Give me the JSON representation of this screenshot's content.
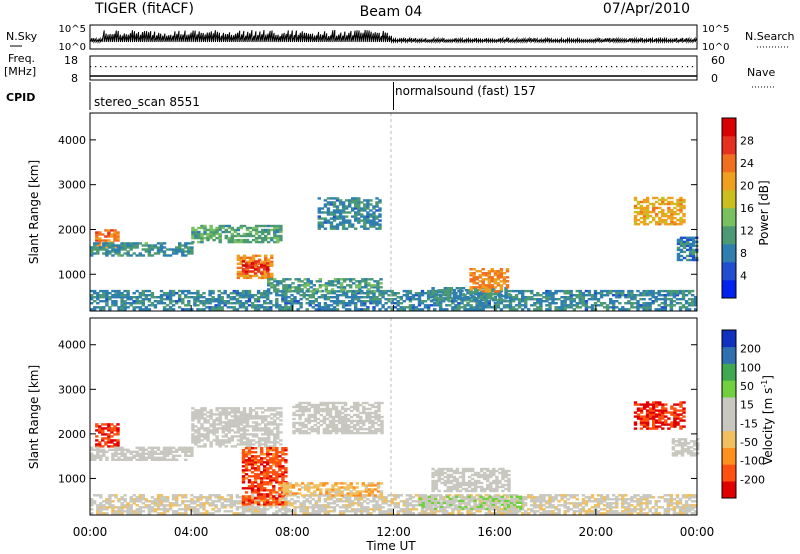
{
  "header": {
    "left": "TIGER (fitACF)",
    "center": "Beam 04",
    "right": "07/Apr/2010"
  },
  "sky_panel": {
    "label": "N.Sky",
    "right_label": "N.Search",
    "ticks_left": [
      "10^5",
      "10^0"
    ],
    "ticks_right": [
      "10^5",
      "10^0"
    ]
  },
  "freq_panel": {
    "label_line1": "Freq.",
    "label_line2": "[MHz]",
    "right_label": "Nave",
    "ticks_left": [
      "18",
      "8"
    ],
    "ticks_right": [
      "60",
      "0"
    ]
  },
  "cpid": {
    "label": "CPID",
    "segments": [
      {
        "name": "stereo_scan 8551",
        "start_hour": 0
      },
      {
        "name": "normalsound (fast) 157",
        "start_hour": 12
      }
    ]
  },
  "power_panel": {
    "ylabel": "Slant Range [km]",
    "yticks": [
      "1000",
      "2000",
      "3000",
      "4000"
    ],
    "colorbar_label": "Power [dB]",
    "colorbar_ticks": [
      "4",
      "8",
      "12",
      "16",
      "20",
      "24",
      "28"
    ],
    "colors": [
      "#0022ee",
      "#1f4fd0",
      "#2e7fb0",
      "#4c9a74",
      "#78c060",
      "#c9c020",
      "#f0a020",
      "#f07020",
      "#e63020",
      "#d80000"
    ]
  },
  "velocity_panel": {
    "ylabel": "Slant Range [km]",
    "yticks": [
      "1000",
      "2000",
      "3000",
      "4000"
    ],
    "colorbar_label_main": "Velocity [m s",
    "colorbar_label_exp": "-1",
    "colorbar_label_end": "]",
    "colorbar_ticks": [
      "-200",
      "-100",
      "-50",
      "-15",
      "15",
      "50",
      "100",
      "200"
    ],
    "colors": [
      "#e00000",
      "#ff5010",
      "#ff9020",
      "#f0c060",
      "#c8c8c0",
      "#c8c8c0",
      "#70d040",
      "#40a850",
      "#3070b0",
      "#1030c0"
    ]
  },
  "x_axis": {
    "ticks": [
      "00:00",
      "04:00",
      "08:00",
      "12:00",
      "16:00",
      "20:00",
      "00:00"
    ],
    "label": "Time UT"
  },
  "chart_data": [
    {
      "type": "heatmap",
      "name": "Power",
      "x_range_hours": [
        0,
        24
      ],
      "ylim_km": [
        180,
        4600
      ],
      "value_unit": "dB",
      "color_range": [
        0,
        32
      ],
      "regions": [
        {
          "t0": 0.0,
          "t1": 24.0,
          "r0": 200,
          "r1": 620,
          "p": 9
        },
        {
          "t0": 0.2,
          "t1": 1.1,
          "r0": 1600,
          "r1": 2000,
          "p": 24
        },
        {
          "t0": 0.0,
          "t1": 4.0,
          "r0": 1400,
          "r1": 1700,
          "p": 10
        },
        {
          "t0": 4.0,
          "t1": 7.5,
          "r0": 1700,
          "r1": 2100,
          "p": 12
        },
        {
          "t0": 5.8,
          "t1": 7.2,
          "r0": 900,
          "r1": 1400,
          "p": 22
        },
        {
          "t0": 6.0,
          "t1": 7.0,
          "r0": 1000,
          "r1": 1300,
          "p": 28
        },
        {
          "t0": 7.0,
          "t1": 11.5,
          "r0": 600,
          "r1": 900,
          "p": 11
        },
        {
          "t0": 9.0,
          "t1": 11.5,
          "r0": 2000,
          "r1": 2700,
          "p": 9
        },
        {
          "t0": 13.5,
          "t1": 16.5,
          "r0": 400,
          "r1": 700,
          "p": 10
        },
        {
          "t0": 15.0,
          "t1": 16.5,
          "r0": 600,
          "r1": 1100,
          "p": 22
        },
        {
          "t0": 21.5,
          "t1": 23.5,
          "r0": 2100,
          "r1": 2700,
          "p": 20
        },
        {
          "t0": 23.2,
          "t1": 24.0,
          "r0": 1300,
          "r1": 1800,
          "p": 8
        }
      ]
    },
    {
      "type": "heatmap",
      "name": "Velocity",
      "x_range_hours": [
        0,
        24
      ],
      "ylim_km": [
        180,
        4600
      ],
      "value_unit": "m s^-1",
      "color_range": [
        -250,
        250
      ],
      "regions": [
        {
          "t0": 0.0,
          "t1": 24.0,
          "r0": 200,
          "r1": 620,
          "v": -30
        },
        {
          "t0": 0.2,
          "t1": 1.1,
          "r0": 1700,
          "r1": 2200,
          "v": -200
        },
        {
          "t0": 0.0,
          "t1": 4.0,
          "r0": 1400,
          "r1": 1700,
          "v": 0
        },
        {
          "t0": 4.0,
          "t1": 7.5,
          "r0": 1700,
          "r1": 2600,
          "v": 0
        },
        {
          "t0": 6.0,
          "t1": 7.8,
          "r0": 400,
          "r1": 1700,
          "v": -180
        },
        {
          "t0": 7.5,
          "t1": 11.5,
          "r0": 600,
          "r1": 900,
          "v": -80
        },
        {
          "t0": 8.0,
          "t1": 11.5,
          "r0": 2000,
          "r1": 2700,
          "v": 0
        },
        {
          "t0": 13.0,
          "t1": 17.0,
          "r0": 300,
          "r1": 600,
          "v": 40
        },
        {
          "t0": 13.5,
          "t1": 16.5,
          "r0": 700,
          "r1": 1200,
          "v": 0
        },
        {
          "t0": 21.5,
          "t1": 23.5,
          "r0": 2100,
          "r1": 2700,
          "v": -200
        },
        {
          "t0": 23.0,
          "t1": 24.0,
          "r0": 1500,
          "r1": 1900,
          "v": 0
        }
      ]
    }
  ]
}
